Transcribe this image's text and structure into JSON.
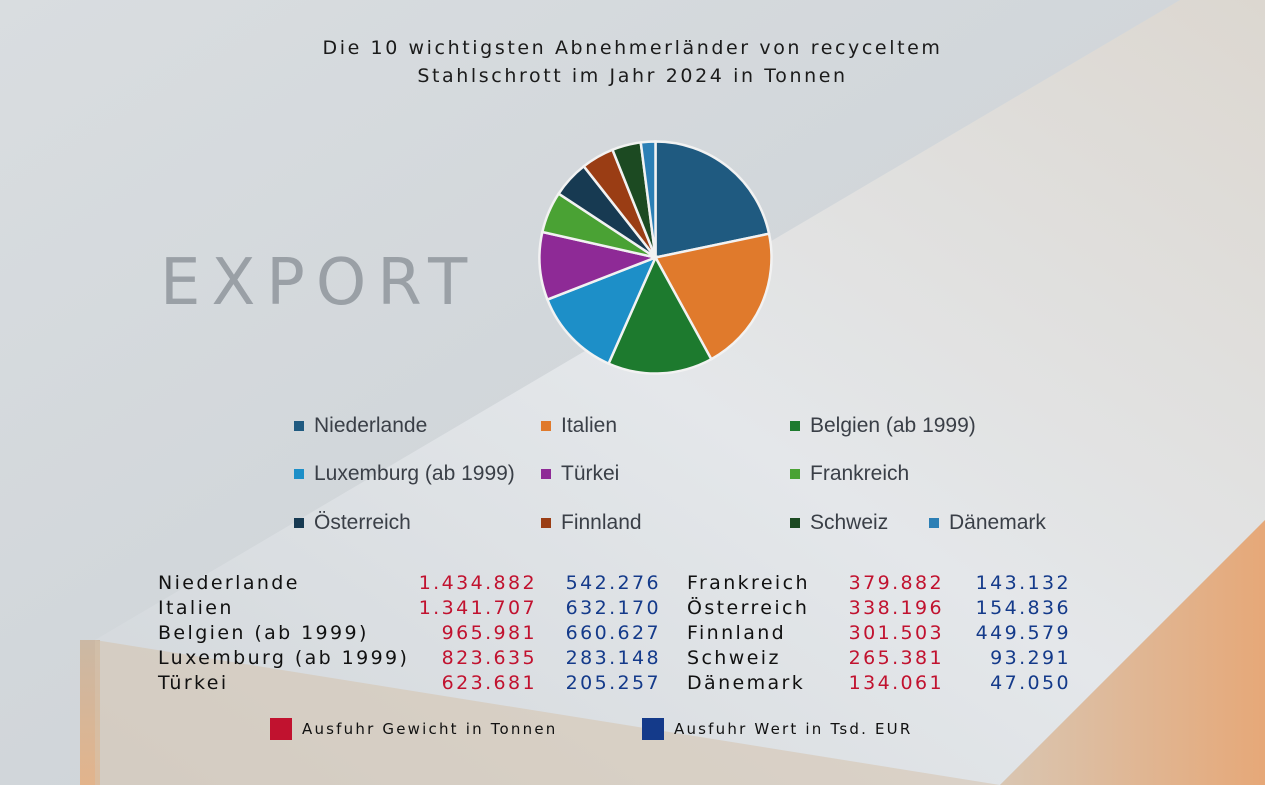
{
  "title_line1": "Die 10 wichtigsten Abnehmerländer von recyceltem",
  "title_line2": "Stahlschrott im Jahr 2024 in Tonnen",
  "watermark": "EXPORT",
  "colors": {
    "weight": "#c1122f",
    "value": "#143a8a"
  },
  "key": {
    "weight_label": "Ausfuhr Gewicht in Tonnen",
    "value_label": "Ausfuhr Wert in Tsd. EUR"
  },
  "chart_data": {
    "type": "pie",
    "categories": [
      "Niederlande",
      "Italien",
      "Belgien (ab 1999)",
      "Luxemburg (ab 1999)",
      "Türkei",
      "Frankreich",
      "Österreich",
      "Finnland",
      "Schweiz",
      "Dänemark"
    ],
    "series": [
      {
        "name": "Ausfuhr Gewicht in Tonnen",
        "values": [
          1434882,
          1341707,
          965981,
          823635,
          623681,
          379882,
          338196,
          301503,
          265381,
          134061
        ]
      },
      {
        "name": "Ausfuhr Wert in Tsd. EUR",
        "values": [
          542276,
          632170,
          660627,
          283148,
          205257,
          143132,
          154836,
          449579,
          93291,
          47050
        ]
      }
    ],
    "slice_colors": [
      "#1f5a80",
      "#e07a2c",
      "#1d7a2e",
      "#1d8fc8",
      "#8e2a96",
      "#4aa234",
      "#173a52",
      "#9a3d14",
      "#1c4a22",
      "#2c7fb5"
    ],
    "legend_position": "bottom",
    "legend": [
      "Niederlande",
      "Italien",
      "Belgien (ab 1999)",
      "Luxemburg (ab 1999)",
      "Türkei",
      "Frankreich",
      "Österreich",
      "Finnland",
      "Schweiz",
      "Dänemark"
    ]
  },
  "table": {
    "left": [
      {
        "country": "Niederlande",
        "weight": "1.434.882",
        "value": "542.276"
      },
      {
        "country": "Italien",
        "weight": "1.341.707",
        "value": "632.170"
      },
      {
        "country": "Belgien (ab 1999)",
        "weight": "965.981",
        "value": "660.627"
      },
      {
        "country": "Luxemburg (ab 1999)",
        "weight": "823.635",
        "value": "283.148"
      },
      {
        "country": "Türkei",
        "weight": "623.681",
        "value": "205.257"
      }
    ],
    "right": [
      {
        "country": "Frankreich",
        "weight": "379.882",
        "value": "143.132"
      },
      {
        "country": "Österreich",
        "weight": "338.196",
        "value": "154.836"
      },
      {
        "country": "Finnland",
        "weight": "301.503",
        "value": "449.579"
      },
      {
        "country": "Schweiz",
        "weight": "265.381",
        "value": "93.291"
      },
      {
        "country": "Dänemark",
        "weight": "134.061",
        "value": "47.050"
      }
    ]
  }
}
